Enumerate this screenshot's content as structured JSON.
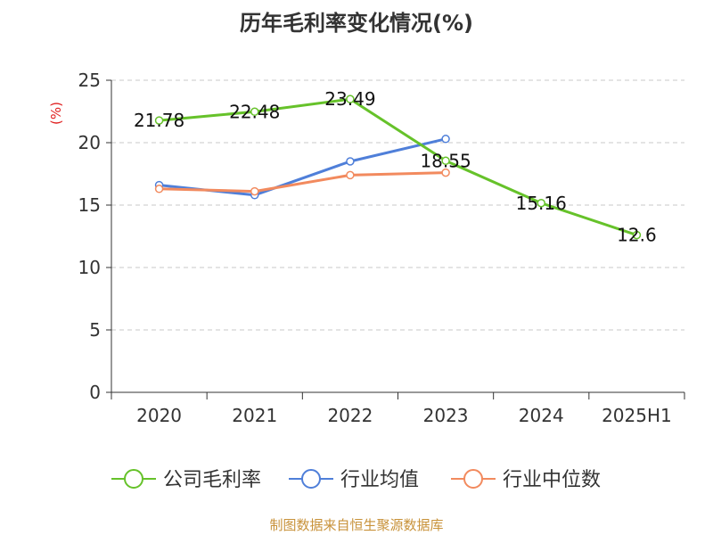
{
  "title": "历年毛利率变化情况(%)",
  "source": "制图数据来自恒生聚源数据库",
  "colors": {
    "company": "#66c22a",
    "industry_avg": "#4f7fd9",
    "industry_median": "#f28a5e",
    "source": "#c8923a",
    "unit": "#e02020",
    "grid": "#c8c8c8",
    "axis": "#333333"
  },
  "chart_data": {
    "type": "line",
    "title": "历年毛利率变化情况(%)",
    "ylabel": "(%)",
    "ylim": [
      0,
      25
    ],
    "yticks": [
      "0",
      "5",
      "10",
      "15",
      "20",
      "25"
    ],
    "categories": [
      "2020",
      "2021",
      "2022",
      "2023",
      "2024",
      "2025H1"
    ],
    "grid": true,
    "legend_position": "bottom",
    "series": [
      {
        "name": "公司毛利率",
        "color": "#66c22a",
        "values": [
          21.78,
          22.48,
          23.49,
          18.55,
          15.16,
          12.6
        ],
        "labels": [
          "21.78",
          "22.48",
          "23.49",
          "18.55",
          "15.16",
          "12.6"
        ]
      },
      {
        "name": "行业均值",
        "color": "#4f7fd9",
        "values": [
          16.6,
          15.8,
          18.5,
          20.3,
          null,
          null
        ]
      },
      {
        "name": "行业中位数",
        "color": "#f28a5e",
        "values": [
          16.3,
          16.1,
          17.4,
          17.6,
          null,
          null
        ]
      }
    ]
  }
}
